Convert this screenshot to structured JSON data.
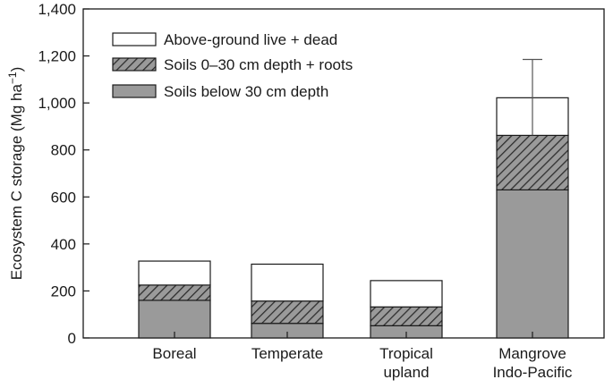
{
  "chart_data": {
    "type": "bar",
    "stacked": true,
    "title": "",
    "xlabel": "",
    "ylabel": "Ecosystem C storage (Mg ha",
    "ylabel_sup": "−1",
    "ylabel_close": ")",
    "ylim": [
      0,
      1400
    ],
    "yticks": [
      0,
      200,
      400,
      600,
      800,
      1000,
      1200,
      1400
    ],
    "ytick_labels": [
      "0",
      "200",
      "400",
      "600",
      "800",
      "1,000",
      "1,200",
      "1,400"
    ],
    "categories": [
      [
        "Boreal"
      ],
      [
        "Temperate"
      ],
      [
        "Tropical",
        "upland"
      ],
      [
        "Mangrove",
        "Indo-Pacific"
      ]
    ],
    "series": [
      {
        "name": "Soils below 30 cm depth",
        "values": [
          160,
          62,
          52,
          630
        ],
        "fill": "#9a9a9a",
        "pattern": "solid"
      },
      {
        "name": "Soils 0–30 cm depth + roots",
        "values": [
          65,
          95,
          80,
          232
        ],
        "fill": "#8c8c8c",
        "pattern": "hatch"
      },
      {
        "name": "Above-ground live + dead",
        "values": [
          102,
          157,
          112,
          160
        ],
        "fill": "#ffffff",
        "pattern": "solid"
      }
    ],
    "legend_order": [
      2,
      1,
      0
    ],
    "error_bars": [
      null,
      null,
      null,
      {
        "low": 862,
        "high": 1185
      }
    ],
    "legend_placement": "top-left",
    "grid": false
  }
}
